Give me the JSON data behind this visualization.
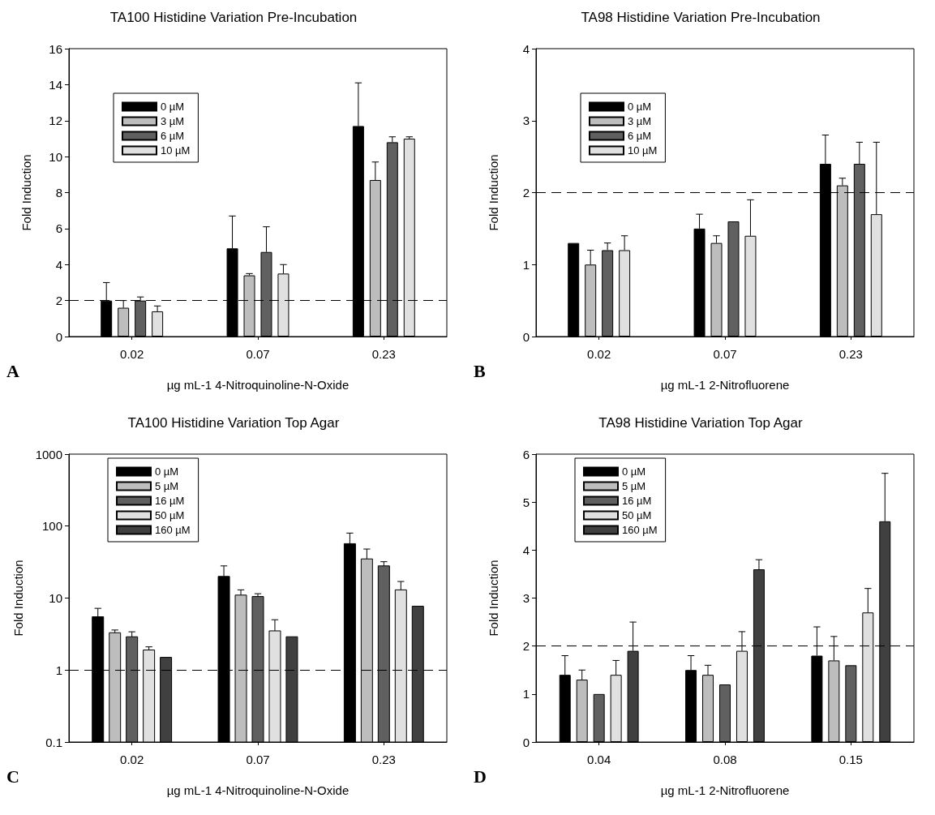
{
  "chart_data": [
    {
      "type": "bar",
      "title": "TA100 Histidine Variation Pre-Incubation",
      "xlabel": "µg mL-1 4-Nitroquinoline-N-Oxide",
      "ylabel": "Fold Induction",
      "categories": [
        "0.02",
        "0.07",
        "0.23"
      ],
      "ylim": [
        0,
        16
      ],
      "yticks": [
        0,
        2,
        4,
        6,
        8,
        10,
        12,
        14,
        16
      ],
      "grid": false,
      "legend": "top left",
      "annotations": [
        "A"
      ],
      "ref_lines": [
        {
          "axis": "y",
          "value": 2,
          "line_style": "dashed",
          "color": "#000000"
        }
      ],
      "series": [
        {
          "name": "0 µM",
          "color": "#000000",
          "values": [
            2.0,
            4.9,
            11.7
          ],
          "errors": [
            [
              2.0,
              3.0
            ],
            [
              4.9,
              6.7
            ],
            [
              11.7,
              14.1
            ]
          ]
        },
        {
          "name": "3 µM",
          "color": "#bdbdbd",
          "values": [
            1.6,
            3.4,
            8.7
          ],
          "errors": [
            [
              1.6,
              2.0
            ],
            [
              3.4,
              3.5
            ],
            [
              8.7,
              9.7
            ]
          ]
        },
        {
          "name": "6 µM",
          "color": "#606060",
          "values": [
            2.0,
            4.7,
            10.8
          ],
          "errors": [
            [
              2.0,
              2.2
            ],
            [
              4.7,
              6.1
            ],
            [
              10.8,
              11.1
            ]
          ]
        },
        {
          "name": "10 µM",
          "color": "#e0e0e0",
          "values": [
            1.4,
            3.5,
            11.0
          ],
          "errors": [
            [
              1.4,
              1.7
            ],
            [
              3.5,
              4.0
            ],
            [
              11.0,
              11.1
            ]
          ]
        }
      ]
    },
    {
      "type": "bar",
      "title": "TA98 Histidine Variation Pre-Incubation",
      "xlabel": "µg mL-1 2-Nitrofluorene",
      "ylabel": "Fold Induction",
      "categories": [
        "0.02",
        "0.07",
        "0.23"
      ],
      "ylim": [
        0,
        4
      ],
      "yticks": [
        0,
        1,
        2,
        3,
        4
      ],
      "grid": false,
      "legend": "top left",
      "annotations": [
        "B"
      ],
      "ref_lines": [
        {
          "axis": "y",
          "value": 2,
          "line_style": "dashed",
          "color": "#000000"
        }
      ],
      "series": [
        {
          "name": "0 µM",
          "color": "#000000",
          "values": [
            1.3,
            1.5,
            2.4
          ],
          "errors": [
            null,
            [
              1.5,
              1.7
            ],
            [
              2.4,
              2.8
            ]
          ]
        },
        {
          "name": "3 µM",
          "color": "#bdbdbd",
          "values": [
            1.0,
            1.3,
            2.1
          ],
          "errors": [
            [
              1.0,
              1.2
            ],
            [
              1.3,
              1.4
            ],
            [
              2.1,
              2.2
            ]
          ]
        },
        {
          "name": "6 µM",
          "color": "#606060",
          "values": [
            1.2,
            1.6,
            2.4
          ],
          "errors": [
            [
              1.2,
              1.3
            ],
            null,
            [
              2.4,
              2.7
            ]
          ]
        },
        {
          "name": "10 µM",
          "color": "#e0e0e0",
          "values": [
            1.2,
            1.4,
            1.7
          ],
          "errors": [
            [
              1.2,
              1.4
            ],
            [
              1.4,
              1.9
            ],
            [
              1.7,
              2.7
            ]
          ]
        }
      ]
    },
    {
      "type": "bar",
      "title": "TA100 Histidine Variation Top Agar",
      "xlabel": "µg mL-1 4-Nitroquinoline-N-Oxide",
      "ylabel": "Fold Induction",
      "categories": [
        "0.02",
        "0.07",
        "0.23"
      ],
      "ylim": [
        0.1,
        1000
      ],
      "yticks": [
        0.1,
        1,
        10,
        100,
        1000
      ],
      "log": "y",
      "grid": false,
      "legend": "top left",
      "annotations": [
        "C"
      ],
      "ref_lines": [
        {
          "axis": "y",
          "value": 1,
          "line_style": "dashed",
          "color": "#000000"
        }
      ],
      "series": [
        {
          "name": "0 µM",
          "color": "#000000",
          "values": [
            5.5,
            20,
            57
          ],
          "errors": [
            [
              5.5,
              7.2
            ],
            [
              20,
              28
            ],
            [
              57,
              80
            ]
          ]
        },
        {
          "name": "5 µM",
          "color": "#bdbdbd",
          "values": [
            3.3,
            11,
            35
          ],
          "errors": [
            [
              3.3,
              3.6
            ],
            [
              11,
              13
            ],
            [
              35,
              48
            ]
          ]
        },
        {
          "name": "16 µM",
          "color": "#606060",
          "values": [
            2.9,
            10.5,
            28
          ],
          "errors": [
            [
              2.9,
              3.4
            ],
            [
              10.5,
              11.5
            ],
            [
              28,
              32
            ]
          ]
        },
        {
          "name": "50 µM",
          "color": "#e0e0e0",
          "values": [
            1.9,
            3.5,
            13
          ],
          "errors": [
            [
              1.9,
              2.1
            ],
            [
              3.5,
              5
            ],
            [
              13,
              17
            ]
          ]
        },
        {
          "name": "160 µM",
          "color": "#404040",
          "values": [
            1.5,
            2.9,
            7.7
          ]
        }
      ]
    },
    {
      "type": "bar",
      "title": "TA98 Histidine Variation Top Agar",
      "xlabel": "µg mL-1 2-Nitrofluorene",
      "ylabel": "Fold Induction",
      "categories": [
        "0.04",
        "0.08",
        "0.15"
      ],
      "ylim": [
        0,
        6
      ],
      "yticks": [
        0,
        1,
        2,
        3,
        4,
        5,
        6
      ],
      "grid": false,
      "legend": "top left",
      "annotations": [
        "D"
      ],
      "ref_lines": [
        {
          "axis": "y",
          "value": 2,
          "line_style": "dashed",
          "color": "#000000"
        }
      ],
      "series": [
        {
          "name": "0 µM",
          "color": "#000000",
          "values": [
            1.4,
            1.5,
            1.8
          ],
          "errors": [
            [
              1.4,
              1.8
            ],
            [
              1.5,
              1.8
            ],
            [
              1.8,
              2.4
            ]
          ]
        },
        {
          "name": "5 µM",
          "color": "#bdbdbd",
          "values": [
            1.3,
            1.4,
            1.7
          ],
          "errors": [
            [
              1.3,
              1.5
            ],
            [
              1.4,
              1.6
            ],
            [
              1.7,
              2.2
            ]
          ]
        },
        {
          "name": "16 µM",
          "color": "#606060",
          "values": [
            1.0,
            1.2,
            1.6
          ]
        },
        {
          "name": "50 µM",
          "color": "#e0e0e0",
          "values": [
            1.4,
            1.9,
            2.7
          ],
          "errors": [
            [
              1.4,
              1.7
            ],
            [
              1.9,
              2.3
            ],
            [
              2.7,
              3.2
            ]
          ]
        },
        {
          "name": "160 µM",
          "color": "#404040",
          "values": [
            1.9,
            3.6,
            4.6
          ],
          "errors": [
            [
              1.9,
              2.5
            ],
            [
              3.6,
              3.8
            ],
            [
              4.6,
              5.6
            ]
          ]
        }
      ]
    }
  ]
}
